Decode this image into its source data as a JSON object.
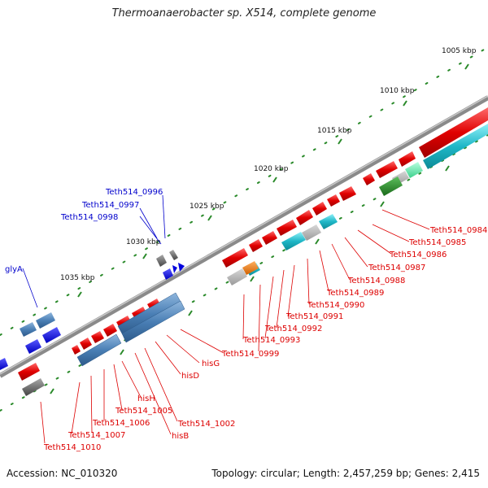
{
  "title": "Thermoanaerobacter sp. X514, complete genome",
  "footer": {
    "accession": "Accession: NC_010320",
    "summary": "Topology: circular; Length: 2,457,259 bp; Genes: 2,415"
  },
  "scale_labels": [
    "1005 kbp",
    "1010 kbp",
    "1015 kbp",
    "1020 kbp",
    "1025 kbp",
    "1030 kbp",
    "1035 kbp"
  ],
  "blue_labels": [
    "Teth514_0996",
    "Teth514_0997",
    "Teth514_0998",
    "glyA"
  ],
  "red_labels": [
    "Teth514_0984",
    "Teth514_0985",
    "Teth514_0986",
    "Teth514_0987",
    "Teth514_0988",
    "Teth514_0989",
    "Teth514_0990",
    "Teth514_0991",
    "Teth514_0992",
    "Teth514_0993",
    "Teth514_0999",
    "hisG",
    "hisD",
    "Teth514_1002",
    "hisB",
    "hisH",
    "Teth514_1005",
    "Teth514_1006",
    "Teth514_1007",
    "Teth514_1010"
  ],
  "colors": {
    "red": "#dd0000",
    "blue": "#0000dd",
    "steel": "#4a7fb5",
    "cyan": "#1fb7c7",
    "green": "#2a8a2a",
    "orange": "#e07a10",
    "grey": "#888888",
    "scale": "#2a8a2a"
  }
}
